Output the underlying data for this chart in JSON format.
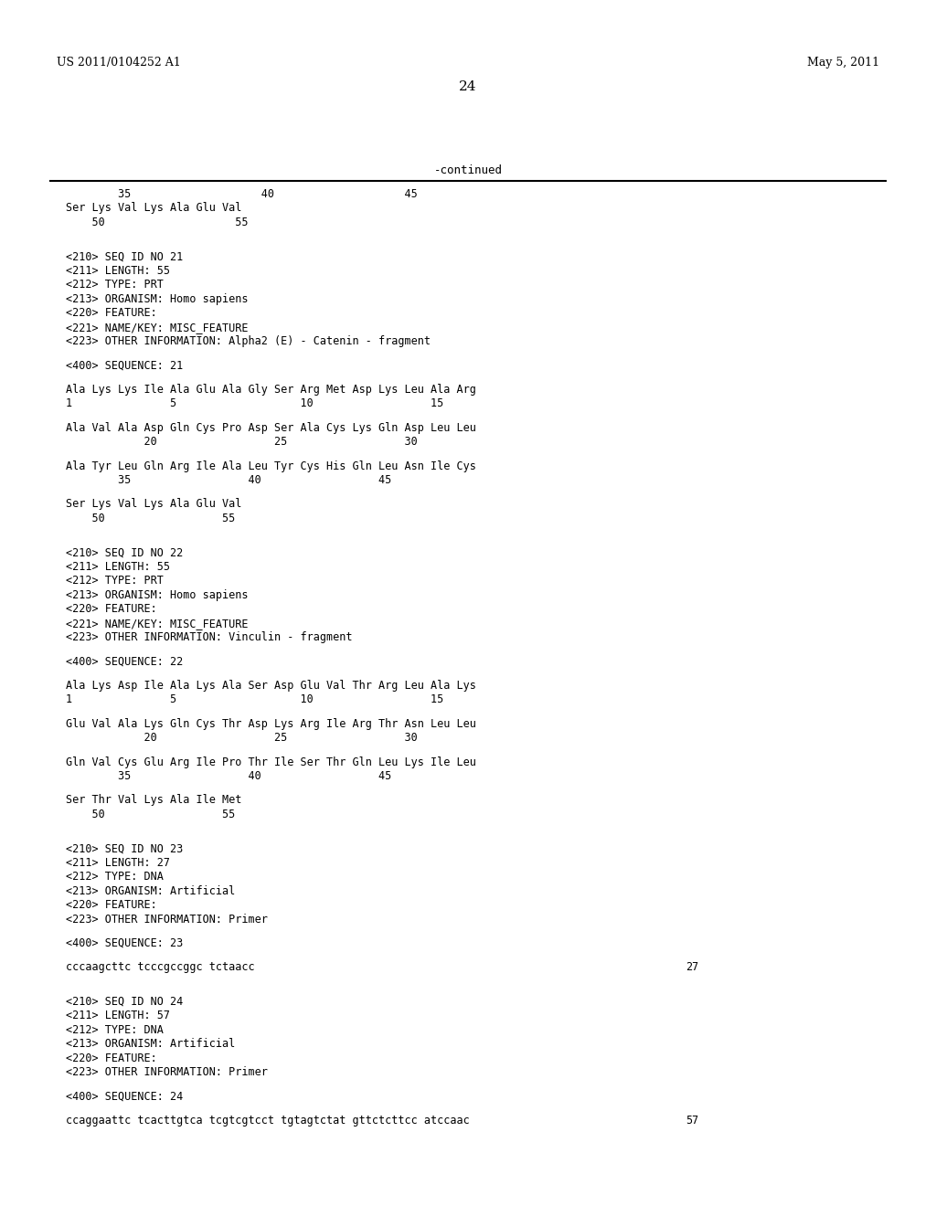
{
  "header_left": "US 2011/0104252 A1",
  "header_right": "May 5, 2011",
  "page_number": "24",
  "continued_label": "-continued",
  "background_color": "#ffffff",
  "text_color": "#000000",
  "lines": [
    {
      "type": "ruler_numbers",
      "text": "        35                    40                    45"
    },
    {
      "type": "sequence",
      "text": "Ser Lys Val Lys Ala Glu Val"
    },
    {
      "type": "ruler_numbers",
      "text": "    50                    55"
    },
    {
      "type": "blank"
    },
    {
      "type": "blank"
    },
    {
      "type": "meta",
      "text": "<210> SEQ ID NO 21"
    },
    {
      "type": "meta",
      "text": "<211> LENGTH: 55"
    },
    {
      "type": "meta",
      "text": "<212> TYPE: PRT"
    },
    {
      "type": "meta",
      "text": "<213> ORGANISM: Homo sapiens"
    },
    {
      "type": "meta",
      "text": "<220> FEATURE:"
    },
    {
      "type": "meta",
      "text": "<221> NAME/KEY: MISC_FEATURE"
    },
    {
      "type": "meta",
      "text": "<223> OTHER INFORMATION: Alpha2 (E) - Catenin - fragment"
    },
    {
      "type": "blank"
    },
    {
      "type": "meta",
      "text": "<400> SEQUENCE: 21"
    },
    {
      "type": "blank"
    },
    {
      "type": "sequence",
      "text": "Ala Lys Lys Ile Ala Glu Ala Gly Ser Arg Met Asp Lys Leu Ala Arg"
    },
    {
      "type": "ruler_numbers",
      "text": "1               5                   10                  15"
    },
    {
      "type": "blank"
    },
    {
      "type": "sequence",
      "text": "Ala Val Ala Asp Gln Cys Pro Asp Ser Ala Cys Lys Gln Asp Leu Leu"
    },
    {
      "type": "ruler_numbers",
      "text": "            20                  25                  30"
    },
    {
      "type": "blank"
    },
    {
      "type": "sequence",
      "text": "Ala Tyr Leu Gln Arg Ile Ala Leu Tyr Cys His Gln Leu Asn Ile Cys"
    },
    {
      "type": "ruler_numbers",
      "text": "        35                  40                  45"
    },
    {
      "type": "blank"
    },
    {
      "type": "sequence",
      "text": "Ser Lys Val Lys Ala Glu Val"
    },
    {
      "type": "ruler_numbers",
      "text": "    50                  55"
    },
    {
      "type": "blank"
    },
    {
      "type": "blank"
    },
    {
      "type": "meta",
      "text": "<210> SEQ ID NO 22"
    },
    {
      "type": "meta",
      "text": "<211> LENGTH: 55"
    },
    {
      "type": "meta",
      "text": "<212> TYPE: PRT"
    },
    {
      "type": "meta",
      "text": "<213> ORGANISM: Homo sapiens"
    },
    {
      "type": "meta",
      "text": "<220> FEATURE:"
    },
    {
      "type": "meta",
      "text": "<221> NAME/KEY: MISC_FEATURE"
    },
    {
      "type": "meta",
      "text": "<223> OTHER INFORMATION: Vinculin - fragment"
    },
    {
      "type": "blank"
    },
    {
      "type": "meta",
      "text": "<400> SEQUENCE: 22"
    },
    {
      "type": "blank"
    },
    {
      "type": "sequence",
      "text": "Ala Lys Asp Ile Ala Lys Ala Ser Asp Glu Val Thr Arg Leu Ala Lys"
    },
    {
      "type": "ruler_numbers",
      "text": "1               5                   10                  15"
    },
    {
      "type": "blank"
    },
    {
      "type": "sequence",
      "text": "Glu Val Ala Lys Gln Cys Thr Asp Lys Arg Ile Arg Thr Asn Leu Leu"
    },
    {
      "type": "ruler_numbers",
      "text": "            20                  25                  30"
    },
    {
      "type": "blank"
    },
    {
      "type": "sequence",
      "text": "Gln Val Cys Glu Arg Ile Pro Thr Ile Ser Thr Gln Leu Lys Ile Leu"
    },
    {
      "type": "ruler_numbers",
      "text": "        35                  40                  45"
    },
    {
      "type": "blank"
    },
    {
      "type": "sequence",
      "text": "Ser Thr Val Lys Ala Ile Met"
    },
    {
      "type": "ruler_numbers",
      "text": "    50                  55"
    },
    {
      "type": "blank"
    },
    {
      "type": "blank"
    },
    {
      "type": "meta",
      "text": "<210> SEQ ID NO 23"
    },
    {
      "type": "meta",
      "text": "<211> LENGTH: 27"
    },
    {
      "type": "meta",
      "text": "<212> TYPE: DNA"
    },
    {
      "type": "meta",
      "text": "<213> ORGANISM: Artificial"
    },
    {
      "type": "meta",
      "text": "<220> FEATURE:"
    },
    {
      "type": "meta",
      "text": "<223> OTHER INFORMATION: Primer"
    },
    {
      "type": "blank"
    },
    {
      "type": "meta",
      "text": "<400> SEQUENCE: 23"
    },
    {
      "type": "blank"
    },
    {
      "type": "sequence_dna",
      "text": "cccaagcttc tcccgccggc tctaacc",
      "endnum": "27"
    },
    {
      "type": "blank"
    },
    {
      "type": "blank"
    },
    {
      "type": "meta",
      "text": "<210> SEQ ID NO 24"
    },
    {
      "type": "meta",
      "text": "<211> LENGTH: 57"
    },
    {
      "type": "meta",
      "text": "<212> TYPE: DNA"
    },
    {
      "type": "meta",
      "text": "<213> ORGANISM: Artificial"
    },
    {
      "type": "meta",
      "text": "<220> FEATURE:"
    },
    {
      "type": "meta",
      "text": "<223> OTHER INFORMATION: Primer"
    },
    {
      "type": "blank"
    },
    {
      "type": "meta",
      "text": "<400> SEQUENCE: 24"
    },
    {
      "type": "blank"
    },
    {
      "type": "sequence_dna",
      "text": "ccaggaattc tcacttgtca tcgtcgtcct tgtagtctat gttctcttcc atccaac",
      "endnum": "57"
    }
  ]
}
